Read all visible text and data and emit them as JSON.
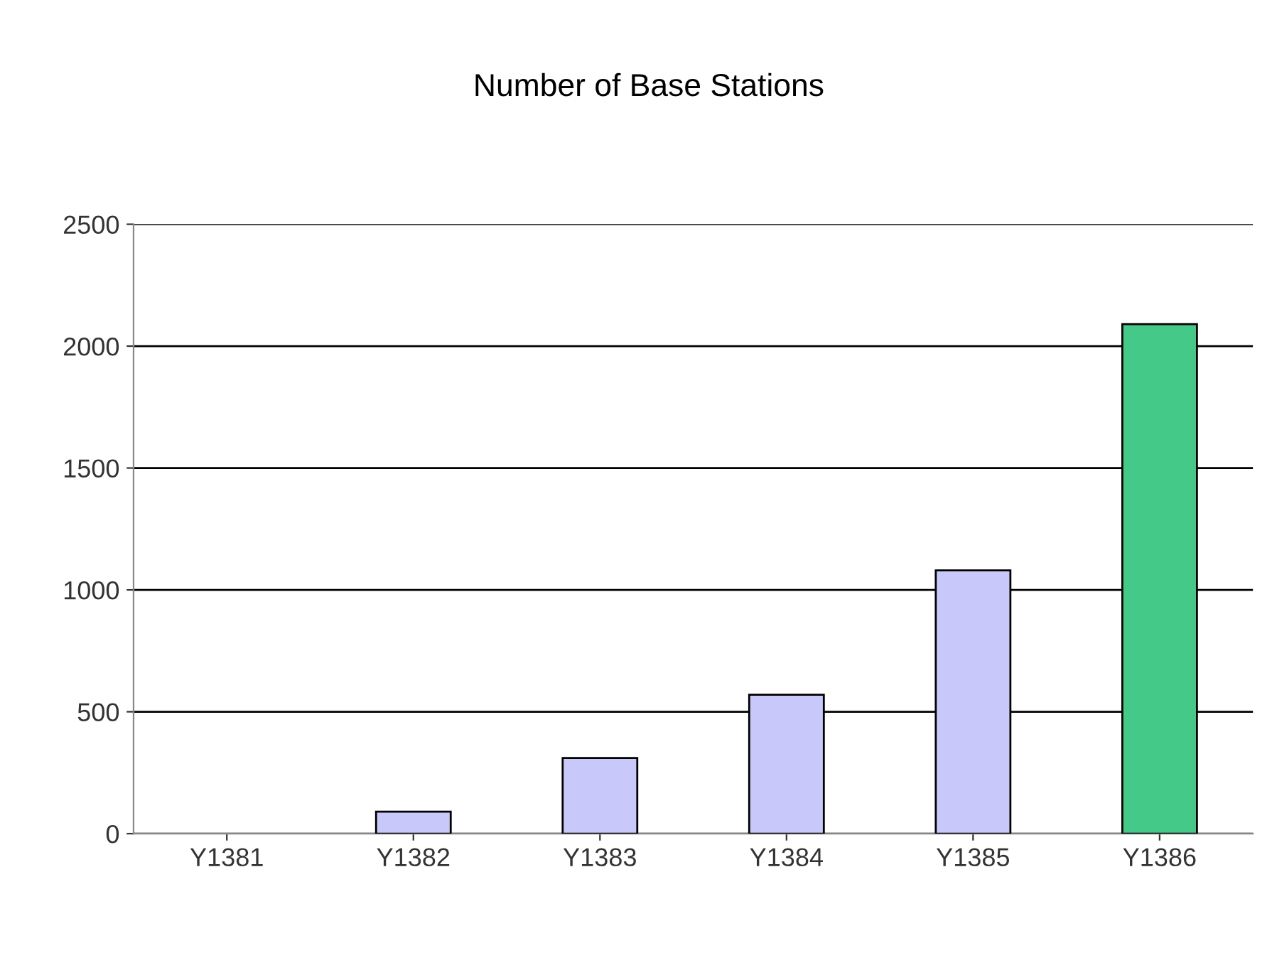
{
  "chart_data": {
    "type": "bar",
    "title": "Number of Base Stations",
    "categories": [
      "Y1381",
      "Y1382",
      "Y1383",
      "Y1384",
      "Y1385",
      "Y1386"
    ],
    "values": [
      null,
      90,
      310,
      570,
      1080,
      2090
    ],
    "colors": [
      "#c8c8fa",
      "#c8c8fa",
      "#c8c8fa",
      "#c8c8fa",
      "#c8c8fa",
      "#44c988"
    ],
    "ylim": [
      0,
      2500
    ],
    "yticks": [
      0,
      500,
      1000,
      1500,
      2000,
      2500
    ],
    "grid": "y"
  }
}
